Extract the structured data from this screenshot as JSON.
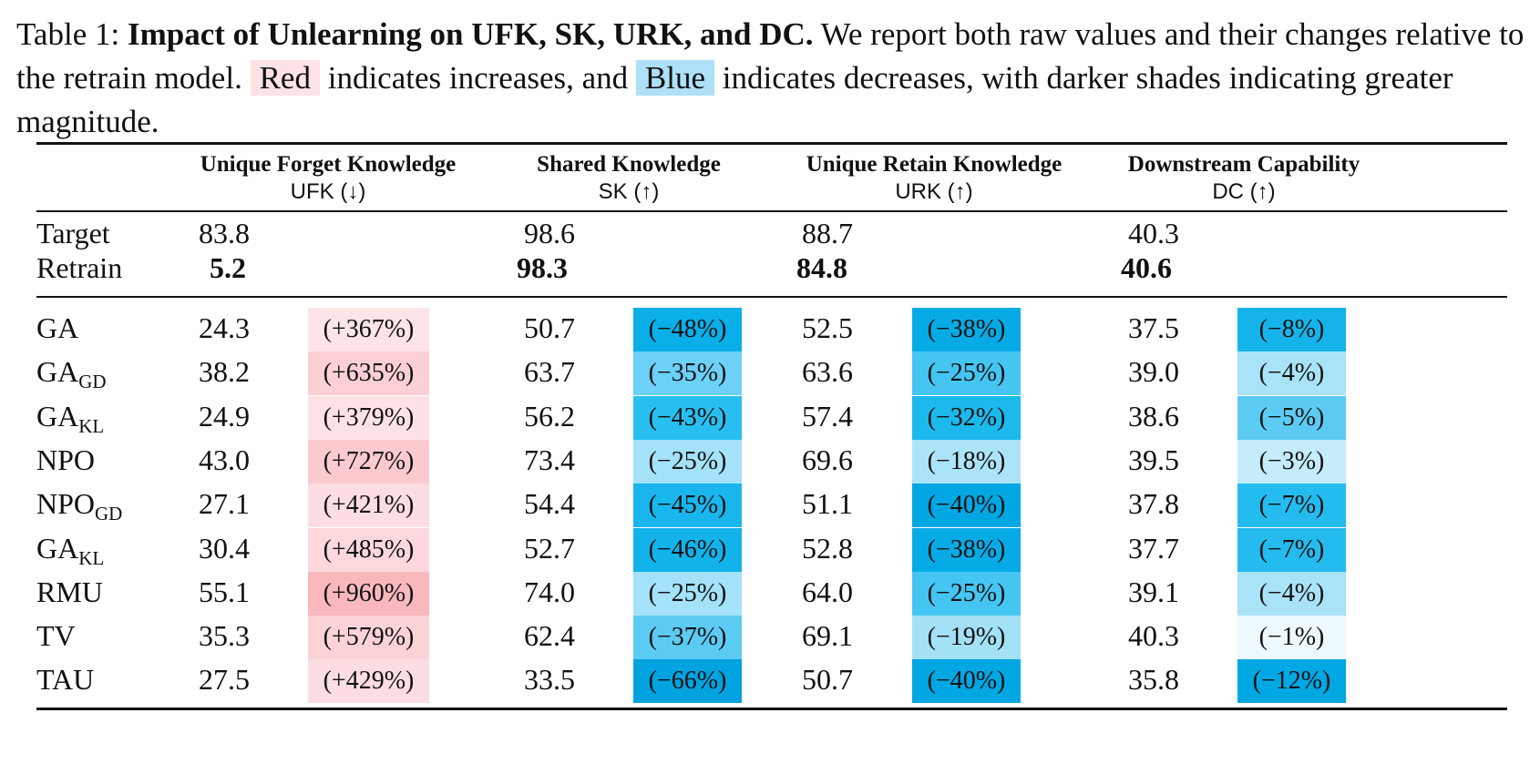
{
  "caption": {
    "label": "Table 1:",
    "title": "Impact of Unlearning on UFK, SK, URK, and DC.",
    "text1": " We report both raw values and their changes relative to the retrain model. ",
    "red_word": "Red",
    "text2": " indicates increases, and ",
    "blue_word": "Blue",
    "text3": " indicates decreases, with darker shades indicating greater magnitude."
  },
  "columns": [
    {
      "title": "Unique Forget Knowledge",
      "abbr": "UFK (↓)"
    },
    {
      "title": "Shared Knowledge",
      "abbr": "SK (↑)"
    },
    {
      "title": "Unique Retain Knowledge",
      "abbr": "URK (↑)"
    },
    {
      "title": "Downstream Capability",
      "abbr": "DC (↑)"
    }
  ],
  "reference_rows": [
    {
      "name": "Target",
      "values": [
        "83.8",
        "98.6",
        "88.7",
        "40.3"
      ]
    },
    {
      "name": "Retrain",
      "values": [
        "5.2",
        "98.3",
        "84.8",
        "40.6"
      ]
    }
  ],
  "method_rows": [
    {
      "name": "GA",
      "sub": "",
      "values": [
        "24.3",
        "50.7",
        "52.5",
        "37.5"
      ],
      "changes": [
        "(+367%)",
        "(−48%)",
        "(−38%)",
        "(−8%)"
      ]
    },
    {
      "name": "GA",
      "sub": "GD",
      "values": [
        "38.2",
        "63.7",
        "63.6",
        "39.0"
      ],
      "changes": [
        "(+635%)",
        "(−35%)",
        "(−25%)",
        "(−4%)"
      ]
    },
    {
      "name": "GA",
      "sub": "KL",
      "values": [
        "24.9",
        "56.2",
        "57.4",
        "38.6"
      ],
      "changes": [
        "(+379%)",
        "(−43%)",
        "(−32%)",
        "(−5%)"
      ]
    },
    {
      "name": "NPO",
      "sub": "",
      "values": [
        "43.0",
        "73.4",
        "69.6",
        "39.5"
      ],
      "changes": [
        "(+727%)",
        "(−25%)",
        "(−18%)",
        "(−3%)"
      ]
    },
    {
      "name": "NPO",
      "sub": "GD",
      "values": [
        "27.1",
        "54.4",
        "51.1",
        "37.8"
      ],
      "changes": [
        "(+421%)",
        "(−45%)",
        "(−40%)",
        "(−7%)"
      ]
    },
    {
      "name": "GA",
      "sub": "KL",
      "values": [
        "30.4",
        "52.7",
        "52.8",
        "37.7"
      ],
      "changes": [
        "(+485%)",
        "(−46%)",
        "(−38%)",
        "(−7%)"
      ]
    },
    {
      "name": "RMU",
      "sub": "",
      "values": [
        "55.1",
        "74.0",
        "64.0",
        "39.1"
      ],
      "changes": [
        "(+960%)",
        "(−25%)",
        "(−25%)",
        "(−4%)"
      ]
    },
    {
      "name": "TV",
      "sub": "",
      "values": [
        "35.3",
        "62.4",
        "69.1",
        "40.3"
      ],
      "changes": [
        "(+579%)",
        "(−37%)",
        "(−19%)",
        "(−1%)"
      ]
    },
    {
      "name": "TAU",
      "sub": "",
      "values": [
        "27.5",
        "33.5",
        "50.7",
        "35.8"
      ],
      "changes": [
        "(+429%)",
        "(−66%)",
        "(−40%)",
        "(−12%)"
      ]
    }
  ],
  "colors": {
    "ufk": [
      "#fde4e7",
      "#fbcfd3",
      "#fde2e5",
      "#facacf",
      "#fcdde1",
      "#fcd8dc",
      "#f8b8be",
      "#fbd3d7",
      "#fcdde1"
    ],
    "sk": [
      "#0aaee8",
      "#6cd0f7",
      "#28bff0",
      "#a3e2f8",
      "#18b6ec",
      "#12b3ea",
      "#a3e2f8",
      "#5ccbf4",
      "#00a3df"
    ],
    "urk": [
      "#06abe6",
      "#45c5f2",
      "#1cb9ed",
      "#abe4f8",
      "#00a7e2",
      "#06abe6",
      "#45c5f2",
      "#a3e1f7",
      "#00a7e2"
    ],
    "dc": [
      "#14b4ea",
      "#a9e3f8",
      "#5ccbf4",
      "#c4ecfa",
      "#24bbee",
      "#24bbee",
      "#a9e3f8",
      "#eef9fe",
      "#00a8e3"
    ]
  }
}
